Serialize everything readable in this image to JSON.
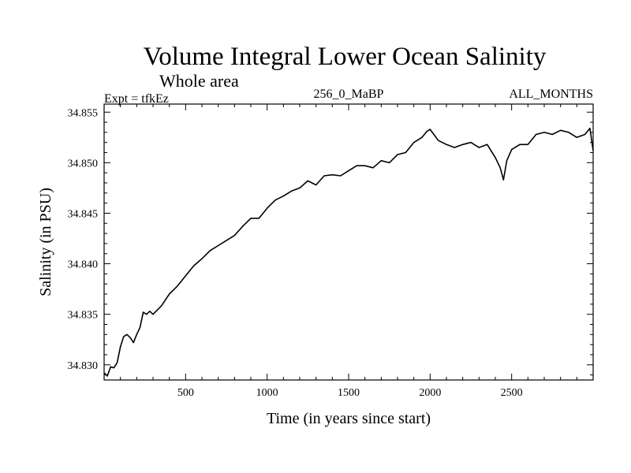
{
  "chart_data": {
    "type": "line",
    "title": "Volume Integral Lower Ocean Salinity",
    "subtitle": "Whole area",
    "left_label": "Expt = tfkEz",
    "center_label": "256_0_MaBP",
    "right_label": "ALL_MONTHS",
    "xlabel": "Time (in years since start)",
    "ylabel": "Salinity (in PSU)",
    "xlim": [
      0,
      3000
    ],
    "ylim": [
      34.8285,
      34.8558
    ],
    "x_ticks": [
      500,
      1000,
      1500,
      2000,
      2500
    ],
    "x_tick_labels": [
      "500",
      "1000",
      "1500",
      "2000",
      "2500"
    ],
    "y_ticks": [
      34.83,
      34.835,
      34.84,
      34.845,
      34.85,
      34.855
    ],
    "y_tick_labels": [
      "34.830",
      "34.835",
      "34.840",
      "34.845",
      "34.850",
      "34.855"
    ],
    "grid": false,
    "series": [
      {
        "color": "#000000",
        "x": [
          0,
          20,
          40,
          60,
          80,
          100,
          120,
          140,
          160,
          180,
          200,
          220,
          240,
          260,
          280,
          300,
          350,
          400,
          450,
          500,
          550,
          600,
          650,
          700,
          750,
          800,
          850,
          900,
          950,
          1000,
          1050,
          1100,
          1150,
          1200,
          1250,
          1300,
          1350,
          1400,
          1450,
          1500,
          1550,
          1600,
          1650,
          1700,
          1750,
          1800,
          1850,
          1900,
          1950,
          1980,
          2000,
          2050,
          2100,
          2150,
          2200,
          2250,
          2300,
          2350,
          2400,
          2430,
          2450,
          2470,
          2500,
          2550,
          2600,
          2650,
          2700,
          2750,
          2800,
          2850,
          2900,
          2950,
          2980,
          3000
        ],
        "y": [
          34.8292,
          34.8289,
          34.8298,
          34.8297,
          34.8302,
          34.8318,
          34.8328,
          34.833,
          34.8327,
          34.8322,
          34.833,
          34.8337,
          34.8352,
          34.835,
          34.8353,
          34.835,
          34.8358,
          34.837,
          34.8378,
          34.8388,
          34.8398,
          34.8405,
          34.8413,
          34.8418,
          34.8423,
          34.8428,
          34.8437,
          34.8445,
          34.8445,
          34.8455,
          34.8463,
          34.8467,
          34.8472,
          34.8475,
          34.8482,
          34.8478,
          34.8487,
          34.8488,
          34.8487,
          34.8492,
          34.8497,
          34.8497,
          34.8495,
          34.8502,
          34.85,
          34.8508,
          34.851,
          34.852,
          34.8525,
          34.8531,
          34.8533,
          34.8522,
          34.8518,
          34.8515,
          34.8518,
          34.852,
          34.8515,
          34.8518,
          34.8505,
          34.8495,
          34.8483,
          34.8502,
          34.8513,
          34.8518,
          34.8518,
          34.8528,
          34.853,
          34.8528,
          34.8532,
          34.853,
          34.8525,
          34.8528,
          34.8534,
          34.8512
        ]
      }
    ]
  }
}
